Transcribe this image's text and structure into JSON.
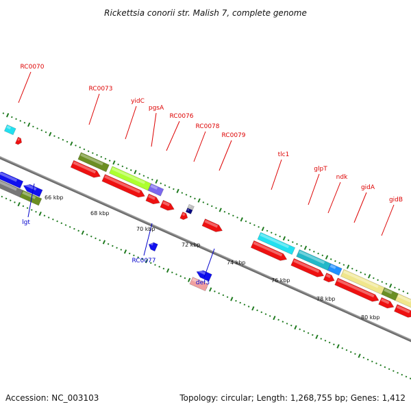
{
  "title": "Rickettsia conorii str. Malish 7, complete genome",
  "footer": {
    "accession": "Accession: NC_003103",
    "stats": "Topology: circular; Length: 1,268,755 bp; Genes: 1,412"
  },
  "colors": {
    "backbone": "#8a8a8a",
    "tick": "#1f7a1f",
    "cds_forward": "#ee1111",
    "label_forward": "#dd0000",
    "label_reverse": "#0000cc"
  },
  "scale_ticks": [
    "66 kbp",
    "68 kbp",
    "70 kbp",
    "72 kbp",
    "74 kbp",
    "76 kbp",
    "78 kbp",
    "80 kbp"
  ],
  "upper_labels": [
    "RC0070",
    "RC0073",
    "yidC",
    "pgsA",
    "RC0076",
    "RC0078",
    "RC0079",
    "tlc1",
    "glpT",
    "ndk",
    "gidA",
    "gidB"
  ],
  "lower_labels": [
    "lgt",
    "RC0077",
    "def3"
  ]
}
